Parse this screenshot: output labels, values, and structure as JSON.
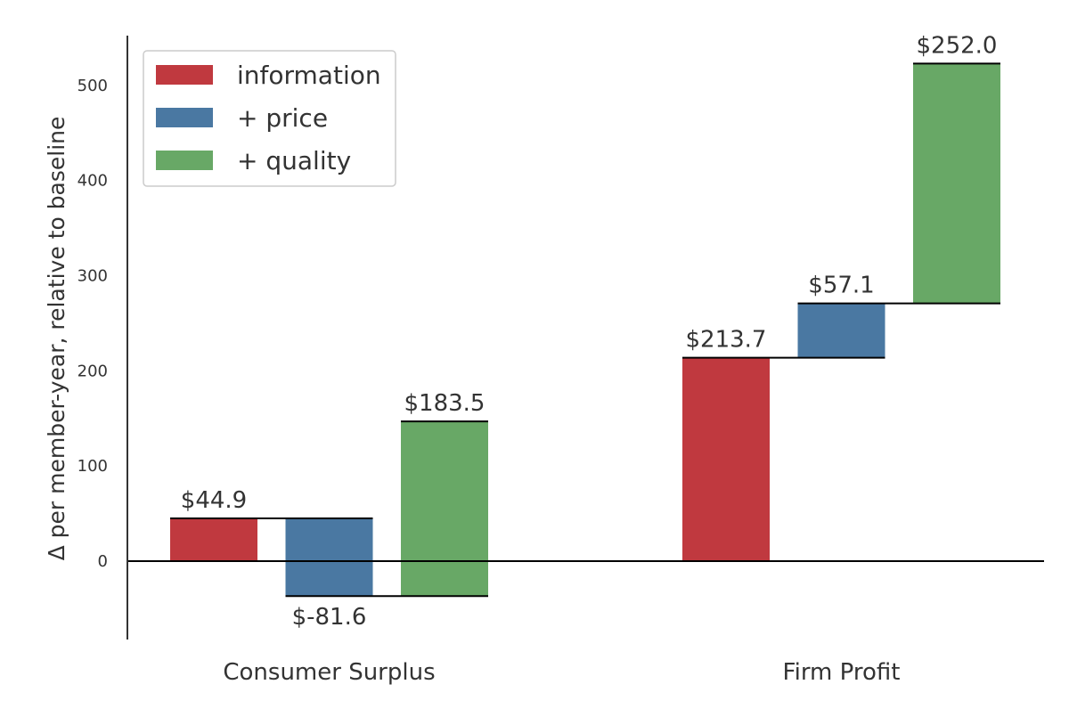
{
  "chart_data": {
    "type": "bar",
    "subtype": "waterfall",
    "ylabel": "Δ per member-year, relative to baseline",
    "ylim": [
      -80,
      550
    ],
    "yticks": [
      0,
      100,
      200,
      300,
      400,
      500
    ],
    "grid": false,
    "legend_position": "top-left",
    "categories": [
      "Consumer Surplus",
      "Firm Profit"
    ],
    "series": [
      {
        "name": "information",
        "color": "#c0393f",
        "steps": [
          {
            "category": "Consumer Surplus",
            "start": 0,
            "end": 44.9,
            "label": "$44.9"
          },
          {
            "category": "Firm Profit",
            "start": 0,
            "end": 213.7,
            "label": "$213.7"
          }
        ]
      },
      {
        "name": "+ price",
        "color": "#4a78a2",
        "steps": [
          {
            "category": "Consumer Surplus",
            "start": 44.9,
            "end": -36.7,
            "label": "$-81.6"
          },
          {
            "category": "Firm Profit",
            "start": 213.7,
            "end": 270.8,
            "label": "$57.1"
          }
        ]
      },
      {
        "name": "+ quality",
        "color": "#68a866",
        "steps": [
          {
            "category": "Consumer Surplus",
            "start": -36.7,
            "end": 146.8,
            "label": "$183.5"
          },
          {
            "category": "Firm Profit",
            "start": 270.8,
            "end": 522.8,
            "label": "$252.0"
          }
        ]
      }
    ]
  }
}
